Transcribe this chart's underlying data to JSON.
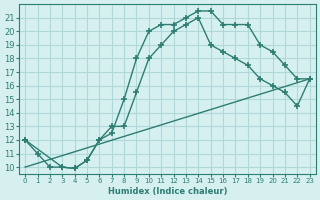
{
  "xlabel": "Humidex (Indice chaleur)",
  "bg_color": "#d6f0f0",
  "grid_color": "#b0d8d8",
  "line_color": "#2e7d72",
  "xlim": [
    -0.5,
    23.5
  ],
  "ylim": [
    9.5,
    22
  ],
  "xticks": [
    0,
    1,
    2,
    3,
    4,
    5,
    6,
    7,
    8,
    9,
    10,
    11,
    12,
    13,
    14,
    15,
    16,
    17,
    18,
    19,
    20,
    21,
    22,
    23
  ],
  "yticks": [
    10,
    11,
    12,
    13,
    14,
    15,
    16,
    17,
    18,
    19,
    20,
    21
  ],
  "line1_x": [
    0,
    1,
    2,
    3,
    4,
    5,
    6,
    7,
    8,
    9,
    10,
    11,
    12,
    13,
    14,
    15,
    16,
    17,
    18,
    19,
    20,
    21,
    22,
    23
  ],
  "line1_y": [
    12,
    11,
    10,
    10,
    9.9,
    10.5,
    12,
    12.5,
    15,
    18,
    20,
    20.5,
    20.5,
    21,
    21.5,
    21.5,
    20.5,
    20.5,
    20.5,
    19,
    18.5,
    17.5,
    16.5,
    16.5
  ],
  "line2_x": [
    0,
    3,
    4,
    5,
    6,
    7,
    8,
    9,
    10,
    11,
    12,
    13,
    14,
    15,
    16,
    17,
    18,
    19,
    20,
    21,
    22,
    23
  ],
  "line2_y": [
    12,
    10,
    9.9,
    10.5,
    12,
    13,
    13,
    15.5,
    18,
    19,
    20,
    20.5,
    21,
    19,
    18.5,
    18,
    17.5,
    16.5,
    16,
    15.5,
    14.5,
    16.5
  ],
  "line3_x": [
    0,
    23
  ],
  "line3_y": [
    10.0,
    16.5
  ]
}
